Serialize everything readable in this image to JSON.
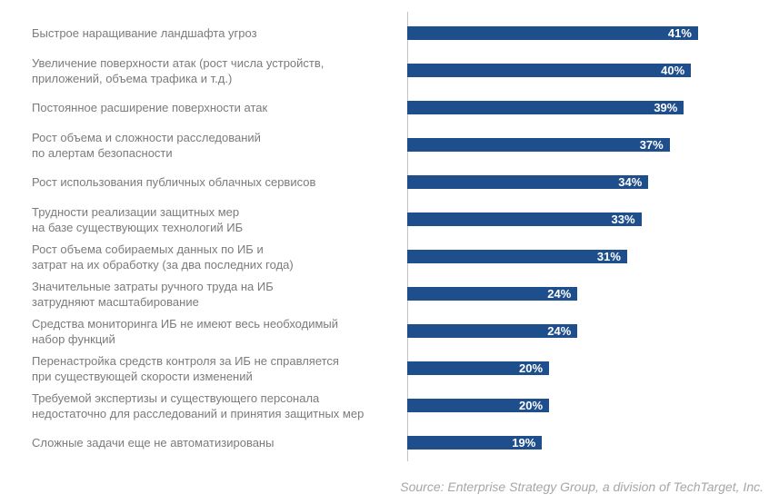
{
  "chart_data": {
    "type": "bar",
    "orientation": "horizontal",
    "grid": false,
    "legend": "none",
    "xlim": [
      0,
      51
    ],
    "bar_color": "#1F4E8C",
    "value_label_color": "#FFFFFF",
    "category_label_color": "#7B7B7B",
    "axis_line_color": "#C3C3C3",
    "categories": [
      [
        "Быстрое наращивание ландшафта угроз"
      ],
      [
        "Увеличение поверхности атак (рост числа устройств,",
        "приложений, объема трафика и т.д.)"
      ],
      [
        "Постоянное расширение поверхности атак"
      ],
      [
        "Рост объема и сложности расследований",
        "по алертам безопасности"
      ],
      [
        "Рост использования публичных облачных сервисов"
      ],
      [
        "Трудности реализации защитных мер",
        "на базе существующих технологий ИБ"
      ],
      [
        "Рост объема собираемых данных по ИБ и",
        "затрат на их обработку (за два последних года)"
      ],
      [
        "Значительные затраты ручного труда на ИБ",
        "затрудняют масштабирование"
      ],
      [
        "Средства мониторинга ИБ не имеют весь необходимый",
        "набор функций"
      ],
      [
        "Перенастройка средств контроля за ИБ не справляется",
        "при существующей скорости изменений"
      ],
      [
        "Требуемой экспертизы и существующего персонала",
        "недостаточно для расследований и принятия защитных мер"
      ],
      [
        "Сложные задачи еще не автоматизированы"
      ]
    ],
    "values": [
      41,
      40,
      39,
      37,
      34,
      33,
      31,
      24,
      24,
      20,
      20,
      19
    ],
    "value_labels": [
      "41%",
      "40%",
      "39%",
      "37%",
      "34%",
      "33%",
      "31%",
      "24%",
      "24%",
      "20%",
      "20%",
      "19%"
    ]
  },
  "footer": {
    "source_text": "Source: Enterprise Strategy Group, a division of TechTarget, Inc.",
    "source_color": "#A6A6A6"
  }
}
